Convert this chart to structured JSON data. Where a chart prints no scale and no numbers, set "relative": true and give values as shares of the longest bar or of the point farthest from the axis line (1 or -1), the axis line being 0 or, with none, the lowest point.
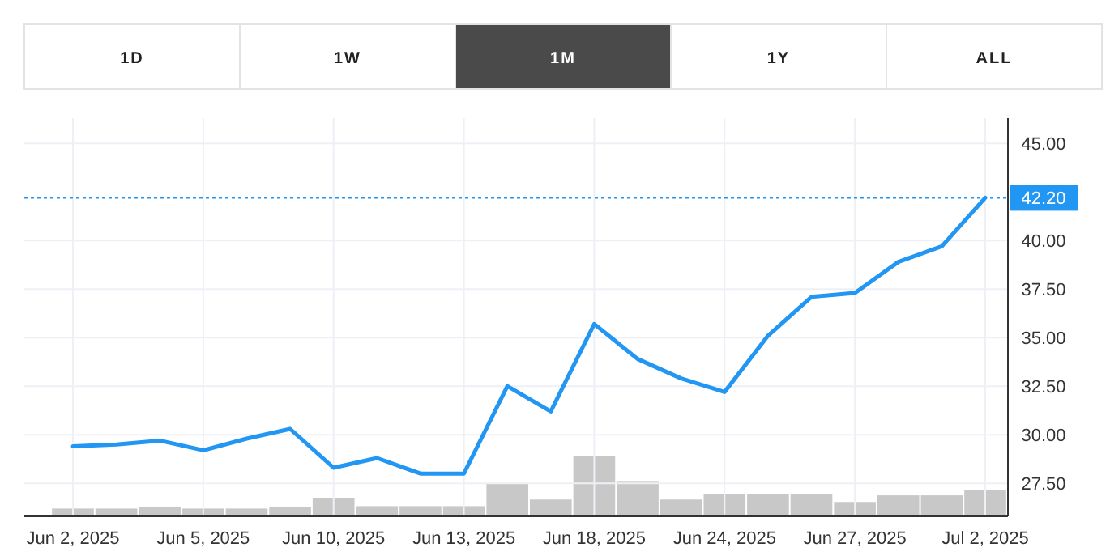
{
  "chart_data": [
    {
      "type": "line",
      "annotations": [
        "1D",
        "1W",
        "1M",
        "1Y",
        "ALL"
      ],
      "categories": [
        "Jun 2, 2025",
        null,
        null,
        "Jun 5, 2025",
        null,
        null,
        "Jun 10, 2025",
        null,
        null,
        "Jun 13, 2025",
        null,
        null,
        "Jun 18, 2025",
        null,
        null,
        "Jun 24, 2025",
        null,
        null,
        "Jun 27, 2025",
        null,
        null,
        "Jul 2, 2025"
      ],
      "series": [
        {
          "color": "#2196f3",
          "values": [
            29.4,
            29.5,
            29.7,
            29.2,
            29.8,
            30.3,
            28.3,
            28.8,
            28.0,
            28.0,
            32.5,
            31.2,
            35.7,
            33.9,
            32.9,
            32.2,
            35.1,
            37.1,
            37.3,
            38.9,
            39.7,
            42.2
          ]
        }
      ],
      "ylim": [
        25.8,
        46.3
      ],
      "yticks": [
        {
          "value": 27.5,
          "label": "27.50"
        },
        {
          "value": 30,
          "label": "30.00"
        },
        {
          "value": 32.5,
          "label": "32.50"
        },
        {
          "value": 35,
          "label": "35.00"
        },
        {
          "value": 37.5,
          "label": "37.50"
        },
        {
          "value": 40,
          "label": "40.00"
        },
        {
          "value": 45,
          "label": "45.00"
        }
      ],
      "ref_lines": [
        {
          "axis": "y",
          "value": 42.2,
          "label": "42.20",
          "color": "#2196f3",
          "line_style": "dotted"
        }
      ],
      "grid": true,
      "marker": "none",
      "line_style": "solid"
    },
    {
      "type": "bar",
      "relative": true,
      "categories": [
        null,
        null,
        null,
        null,
        null,
        null,
        null,
        null,
        null,
        null,
        null,
        null,
        null,
        null,
        null,
        null,
        null,
        null,
        null,
        null,
        null,
        null
      ],
      "series": [
        {
          "color": "#c8c8c8",
          "values": [
            0.13,
            0.13,
            0.16,
            0.13,
            0.13,
            0.15,
            0.3,
            0.17,
            0.17,
            0.17,
            0.54,
            0.28,
            1,
            0.59,
            0.28,
            0.37,
            0.37,
            0.37,
            0.24,
            0.35,
            0.35,
            0.44
          ]
        }
      ]
    }
  ]
}
